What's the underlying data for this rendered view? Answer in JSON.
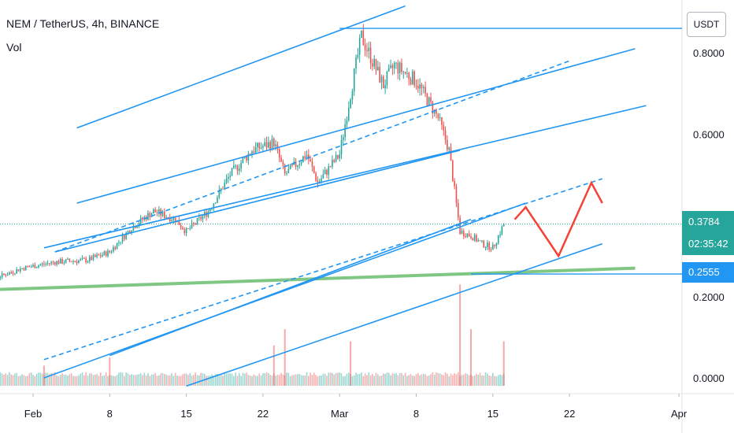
{
  "header": {
    "symbol": "NEM / TetherUS, 4h, BINANCE",
    "indicator": "Vol"
  },
  "currency_button": "USDT",
  "price_axis": {
    "ticks": [
      "0.8000",
      "0.6000",
      "0.2000",
      "0.0000"
    ]
  },
  "time_axis": {
    "ticks": [
      "Feb",
      "8",
      "15",
      "22",
      "Mar",
      "8",
      "15",
      "22",
      "Apr"
    ]
  },
  "last_price": {
    "value": "0.3784",
    "countdown": "02:35:42",
    "color": "#26a69a"
  },
  "level_tag": {
    "value": "0.2555",
    "color": "#2196f3"
  },
  "colors": {
    "up": "#26a69a",
    "down": "#ef5350",
    "channel": "#2196f3",
    "support": "#81c784",
    "projection": "#f44336"
  },
  "chart_data": {
    "type": "candlestick",
    "xlabel": "",
    "ylabel": "",
    "ylim": [
      -0.02,
      0.92
    ],
    "x_range": [
      "2021-01-26",
      "2021-04-03"
    ],
    "close_path": [
      [
        "2021-01-26",
        0.245
      ],
      [
        "2021-01-28",
        0.24
      ],
      [
        "2021-01-31",
        0.27
      ],
      [
        "2021-02-03",
        0.285
      ],
      [
        "2021-02-06",
        0.29
      ],
      [
        "2021-02-08",
        0.31
      ],
      [
        "2021-02-10",
        0.37
      ],
      [
        "2021-02-12",
        0.41
      ],
      [
        "2021-02-14",
        0.39
      ],
      [
        "2021-02-15",
        0.36
      ],
      [
        "2021-02-17",
        0.41
      ],
      [
        "2021-02-19",
        0.5
      ],
      [
        "2021-02-21",
        0.56
      ],
      [
        "2021-02-23",
        0.58
      ],
      [
        "2021-02-24",
        0.5
      ],
      [
        "2021-02-26",
        0.55
      ],
      [
        "2021-02-27",
        0.48
      ],
      [
        "2021-03-01",
        0.55
      ],
      [
        "2021-03-02",
        0.7
      ],
      [
        "2021-03-03",
        0.84
      ],
      [
        "2021-03-04",
        0.78
      ],
      [
        "2021-03-05",
        0.72
      ],
      [
        "2021-03-06",
        0.77
      ],
      [
        "2021-03-08",
        0.73
      ],
      [
        "2021-03-10",
        0.64
      ],
      [
        "2021-03-11",
        0.56
      ],
      [
        "2021-03-12",
        0.36
      ],
      [
        "2021-03-13",
        0.35
      ],
      [
        "2021-03-14",
        0.33
      ],
      [
        "2021-03-15",
        0.32
      ],
      [
        "2021-03-16",
        0.3784
      ]
    ],
    "volume_spikes": [
      [
        "2021-02-02",
        0.03
      ],
      [
        "2021-02-08",
        0.05
      ],
      [
        "2021-02-23",
        0.08
      ],
      [
        "2021-02-24",
        0.12
      ],
      [
        "2021-03-02",
        0.09
      ],
      [
        "2021-03-12",
        0.23
      ],
      [
        "2021-03-13",
        0.12
      ],
      [
        "2021-03-16",
        0.09
      ]
    ],
    "annotations": {
      "horizontal_levels": [
        {
          "from": "2021-03-01",
          "value": 0.86
        },
        {
          "from": "2021-03-13",
          "value": 0.2555
        }
      ],
      "support_line": [
        [
          "2021-01-26",
          0.215
        ],
        [
          "2021-03-28",
          0.27
        ]
      ],
      "channel_lines": [
        [
          [
            "2021-02-05",
            0.615
          ],
          [
            "2021-03-07",
            0.915
          ]
        ],
        [
          [
            "2021-02-05",
            0.43
          ],
          [
            "2021-03-28",
            0.81
          ]
        ],
        [
          [
            "2021-02-02",
            0.32
          ],
          [
            "2021-03-29",
            0.67
          ]
        ],
        [
          [
            "2021-02-03",
            0.31
          ],
          [
            "2021-03-12",
            0.56
          ]
        ],
        [
          [
            "2021-02-02",
            0.0
          ],
          [
            "2021-03-18",
            0.43
          ]
        ],
        [
          [
            "2021-02-08",
            0.055
          ],
          [
            "2021-03-13",
            0.39
          ]
        ],
        [
          [
            "2021-02-15",
            -0.02
          ],
          [
            "2021-03-25",
            0.33
          ]
        ]
      ],
      "dashed_lines": [
        [
          [
            "2021-02-03",
            0.31
          ],
          [
            "2021-03-22",
            0.78
          ]
        ],
        [
          [
            "2021-02-02",
            0.045
          ],
          [
            "2021-03-25",
            0.49
          ]
        ]
      ],
      "projection_path": [
        [
          "2021-03-17",
          0.39
        ],
        [
          "2021-03-18",
          0.42
        ],
        [
          "2021-03-21",
          0.3
        ],
        [
          "2021-03-24",
          0.48
        ],
        [
          "2021-03-25",
          0.43
        ]
      ]
    }
  }
}
